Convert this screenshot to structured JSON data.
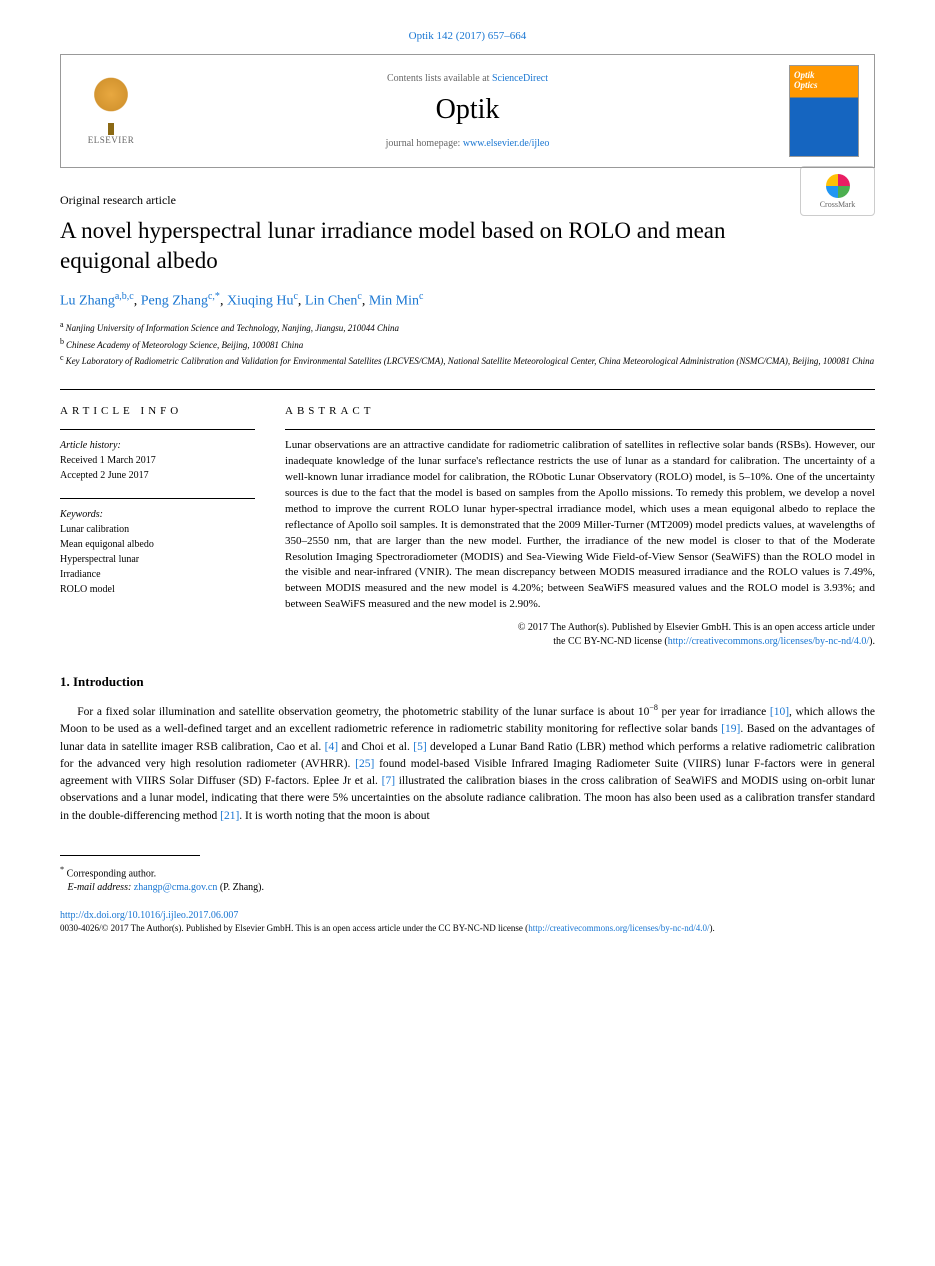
{
  "citation": "Optik 142 (2017) 657–664",
  "header": {
    "contents_prefix": "Contents lists available at ",
    "contents_link": "ScienceDirect",
    "journal": "Optik",
    "homepage_prefix": "journal homepage: ",
    "homepage_link": "www.elsevier.de/ijleo",
    "publisher": "ELSEVIER",
    "cover_title1": "Optik",
    "cover_title2": "Optics"
  },
  "article_type": "Original research article",
  "title": "A novel hyperspectral lunar irradiance model based on ROLO and mean equigonal albedo",
  "crossmark": "CrossMark",
  "authors": [
    {
      "name": "Lu Zhang",
      "affil": "a,b,c"
    },
    {
      "name": "Peng Zhang",
      "affil": "c,*"
    },
    {
      "name": "Xiuqing Hu",
      "affil": "c"
    },
    {
      "name": "Lin Chen",
      "affil": "c"
    },
    {
      "name": "Min Min",
      "affil": "c"
    }
  ],
  "affiliations": [
    {
      "sup": "a",
      "text": "Nanjing University of Information Science and Technology, Nanjing, Jiangsu, 210044 China"
    },
    {
      "sup": "b",
      "text": "Chinese Academy of Meteorology Science, Beijing, 100081 China"
    },
    {
      "sup": "c",
      "text": "Key Laboratory of Radiometric Calibration and Validation for Environmental Satellites (LRCVES/CMA), National Satellite Meteorological Center, China Meteorological Administration (NSMC/CMA), Beijing, 100081 China"
    }
  ],
  "info_header": "article info",
  "abstract_header": "abstract",
  "history": {
    "label": "Article history:",
    "received": "Received 1 March 2017",
    "accepted": "Accepted 2 June 2017"
  },
  "keywords": {
    "label": "Keywords:",
    "items": [
      "Lunar calibration",
      "Mean equigonal albedo",
      "Hyperspectral lunar",
      "Irradiance",
      "ROLO model"
    ]
  },
  "abstract": "Lunar observations are an attractive candidate for radiometric calibration of satellites in reflective solar bands (RSBs). However, our inadequate knowledge of the lunar surface's reflectance restricts the use of lunar as a standard for calibration. The uncertainty of a well-known lunar irradiance model for calibration, the RObotic Lunar Observatory (ROLO) model, is 5–10%. One of the uncertainty sources is due to the fact that the model is based on samples from the Apollo missions. To remedy this problem, we develop a novel method to improve the current ROLO lunar hyper-spectral irradiance model, which uses a mean equigonal albedo to replace the reflectance of Apollo soil samples. It is demonstrated that the 2009 Miller-Turner (MT2009) model predicts values, at wavelengths of 350–2550 nm, that are larger than the new model. Further, the irradiance of the new model is closer to that of the Moderate Resolution Imaging Spectroradiometer (MODIS) and Sea-Viewing Wide Field-of-View Sensor (SeaWiFS) than the ROLO model in the visible and near-infrared (VNIR). The mean discrepancy between MODIS measured irradiance and the ROLO values is 7.49%, between MODIS measured and the new model is 4.20%; between SeaWiFS measured values and the ROLO model is 3.93%; and between SeaWiFS measured and the new model is 2.90%.",
  "copyright": {
    "line1": "© 2017 The Author(s). Published by Elsevier GmbH. This is an open access article under",
    "line2_prefix": "the CC BY-NC-ND license (",
    "line2_link": "http://creativecommons.org/licenses/by-nc-nd/4.0/",
    "line2_suffix": ")."
  },
  "section1": {
    "title": "1.  Introduction",
    "para1_parts": [
      "For a fixed solar illumination and satellite observation geometry, the photometric stability of the lunar surface is about 10",
      "−8",
      " per year for irradiance ",
      "[10]",
      ", which allows the Moon to be used as a well-defined target and an excellent radiometric reference in radiometric stability monitoring for reflective solar bands ",
      "[19]",
      ". Based on the advantages of lunar data in satellite imager RSB calibration, Cao et al. ",
      "[4]",
      " and Choi et al. ",
      "[5]",
      " developed a Lunar Band Ratio (LBR) method which performs a relative radiometric calibration for the advanced very high resolution radiometer (AVHRR). ",
      "[25]",
      " found model-based Visible Infrared Imaging Radiometer Suite (VIIRS) lunar F-factors were in general agreement with VIIRS Solar Diffuser (SD) F-factors. Eplee Jr et al. ",
      "[7]",
      " illustrated the calibration biases in the cross calibration of SeaWiFS and MODIS using on-orbit lunar observations and a lunar model, indicating that there were 5% uncertainties on the absolute radiance calibration. The moon has also been used as a calibration transfer standard in the double-differencing method ",
      "[21]",
      ". It is worth noting that the moon is about"
    ]
  },
  "footer": {
    "corresponding_label": "Corresponding author.",
    "email_label": "E-mail address:",
    "email": "zhangp@cma.gov.cn",
    "email_author": "(P. Zhang).",
    "doi": "http://dx.doi.org/10.1016/j.ijleo.2017.06.007",
    "issn_line_prefix": "0030-4026/© 2017 The Author(s). Published by Elsevier GmbH. This is an open access article under the CC BY-NC-ND license (",
    "issn_link": "http://creativecommons.org/licenses/by-nc-nd/4.0/",
    "issn_suffix": ")."
  }
}
